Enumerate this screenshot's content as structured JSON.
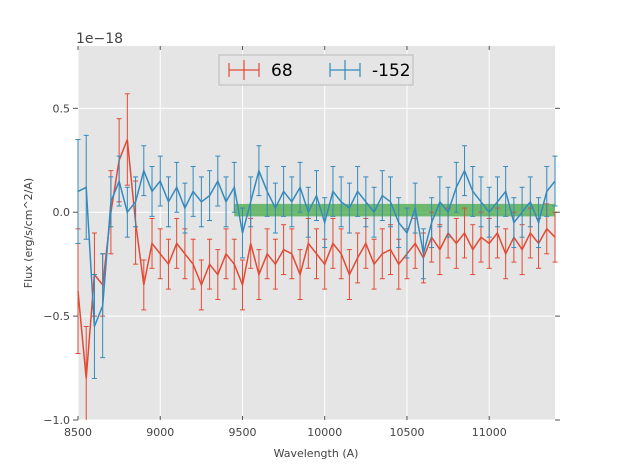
{
  "chart_data": {
    "type": "line",
    "title": "",
    "xlabel": "Wavelength (A)",
    "ylabel": "Flux (erg/s/cm^2/A)",
    "offset_text": "1e−18",
    "xlim": [
      8500,
      11400
    ],
    "ylim": [
      -1.0,
      0.8
    ],
    "xticks": [
      8500,
      9000,
      9500,
      10000,
      10500,
      11000
    ],
    "yticks": [
      -1.0,
      -0.5,
      0.0,
      0.5
    ],
    "ytick_labels": [
      "−1.0",
      "−0.5",
      "0.0",
      "0.5"
    ],
    "grid": true,
    "legend_position": "top-center",
    "band": {
      "x_start": 9450,
      "x_end": 11400,
      "y_low": -0.02,
      "y_high": 0.04,
      "color": "#2ca02c"
    },
    "series": [
      {
        "name": "68",
        "color": "#e24a33",
        "x": [
          8500,
          8550,
          8600,
          8650,
          8700,
          8750,
          8800,
          8850,
          8900,
          8950,
          9000,
          9050,
          9100,
          9150,
          9200,
          9250,
          9300,
          9350,
          9400,
          9450,
          9500,
          9550,
          9600,
          9650,
          9700,
          9750,
          9800,
          9850,
          9900,
          9950,
          10000,
          10050,
          10100,
          10150,
          10200,
          10250,
          10300,
          10350,
          10400,
          10450,
          10500,
          10550,
          10600,
          10650,
          10700,
          10750,
          10800,
          10850,
          10900,
          10950,
          11000,
          11050,
          11100,
          11150,
          11200,
          11250,
          11300,
          11350,
          11400
        ],
        "y": [
          -0.38,
          -0.8,
          -0.3,
          -0.35,
          0.0,
          0.25,
          0.35,
          -0.05,
          -0.35,
          -0.15,
          -0.2,
          -0.25,
          -0.15,
          -0.2,
          -0.25,
          -0.35,
          -0.25,
          -0.3,
          -0.2,
          -0.25,
          -0.35,
          -0.15,
          -0.3,
          -0.2,
          -0.25,
          -0.18,
          -0.2,
          -0.3,
          -0.15,
          -0.2,
          -0.25,
          -0.15,
          -0.2,
          -0.3,
          -0.22,
          -0.15,
          -0.25,
          -0.2,
          -0.18,
          -0.25,
          -0.2,
          -0.15,
          -0.22,
          -0.12,
          -0.18,
          -0.1,
          -0.15,
          -0.1,
          -0.18,
          -0.12,
          -0.15,
          -0.1,
          -0.2,
          -0.12,
          -0.18,
          -0.1,
          -0.15,
          -0.08,
          -0.12
        ],
        "err": [
          0.3,
          0.25,
          0.2,
          0.15,
          0.2,
          0.2,
          0.22,
          0.2,
          0.12,
          0.12,
          0.12,
          0.12,
          0.12,
          0.12,
          0.12,
          0.12,
          0.12,
          0.12,
          0.12,
          0.12,
          0.12,
          0.12,
          0.12,
          0.12,
          0.12,
          0.12,
          0.12,
          0.12,
          0.12,
          0.12,
          0.12,
          0.12,
          0.12,
          0.12,
          0.12,
          0.12,
          0.12,
          0.12,
          0.12,
          0.12,
          0.12,
          0.12,
          0.12,
          0.12,
          0.12,
          0.12,
          0.12,
          0.12,
          0.12,
          0.12,
          0.12,
          0.12,
          0.12,
          0.12,
          0.12,
          0.12,
          0.12,
          0.12,
          0.12
        ]
      },
      {
        "name": "-152",
        "color": "#348abd",
        "x": [
          8500,
          8550,
          8600,
          8650,
          8700,
          8750,
          8800,
          8850,
          8900,
          8950,
          9000,
          9050,
          9100,
          9150,
          9200,
          9250,
          9300,
          9350,
          9400,
          9450,
          9500,
          9550,
          9600,
          9650,
          9700,
          9750,
          9800,
          9850,
          9900,
          9950,
          10000,
          10050,
          10100,
          10150,
          10200,
          10250,
          10300,
          10350,
          10400,
          10450,
          10500,
          10550,
          10600,
          10650,
          10700,
          10750,
          10800,
          10850,
          10900,
          10950,
          11000,
          11050,
          11100,
          11150,
          11200,
          11250,
          11300,
          11350,
          11400
        ],
        "y": [
          0.1,
          0.12,
          -0.55,
          -0.45,
          0.05,
          0.15,
          0.0,
          0.05,
          0.2,
          0.1,
          0.15,
          0.05,
          0.12,
          0.02,
          0.1,
          0.05,
          0.08,
          0.15,
          0.05,
          0.12,
          -0.1,
          0.05,
          0.2,
          0.1,
          0.02,
          0.1,
          0.05,
          0.12,
          0.0,
          0.08,
          -0.05,
          0.1,
          0.05,
          0.02,
          0.1,
          0.05,
          0.0,
          0.08,
          0.05,
          -0.05,
          -0.1,
          0.02,
          -0.2,
          -0.05,
          0.05,
          0.0,
          0.12,
          0.2,
          0.1,
          0.05,
          0.0,
          0.05,
          0.1,
          -0.05,
          0.0,
          0.05,
          -0.05,
          0.1,
          0.15
        ],
        "err": [
          0.25,
          0.25,
          0.25,
          0.25,
          0.12,
          0.12,
          0.12,
          0.12,
          0.12,
          0.12,
          0.12,
          0.12,
          0.12,
          0.12,
          0.12,
          0.12,
          0.12,
          0.12,
          0.12,
          0.12,
          0.12,
          0.12,
          0.12,
          0.12,
          0.12,
          0.12,
          0.12,
          0.12,
          0.12,
          0.12,
          0.12,
          0.12,
          0.12,
          0.12,
          0.12,
          0.12,
          0.12,
          0.12,
          0.12,
          0.12,
          0.12,
          0.12,
          0.12,
          0.12,
          0.12,
          0.12,
          0.12,
          0.12,
          0.12,
          0.12,
          0.12,
          0.12,
          0.12,
          0.12,
          0.12,
          0.12,
          0.12,
          0.12,
          0.12
        ]
      }
    ]
  }
}
